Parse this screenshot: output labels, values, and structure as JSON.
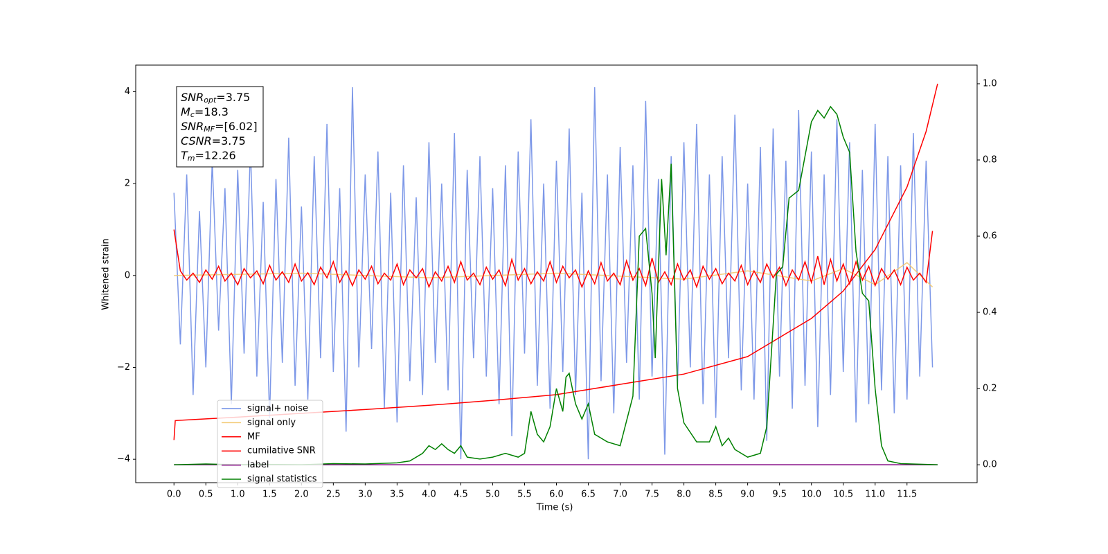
{
  "chart_data": {
    "type": "line",
    "xlabel": "Time (s)",
    "ylabel": "Whitened strain",
    "xlim": [
      -0.6,
      12.6
    ],
    "ylim": [
      -4.51,
      4.58
    ],
    "y2lim": [
      -0.047,
      1.049
    ],
    "xticks": [
      {
        "value": 0,
        "label": "0.0"
      },
      0.5,
      {
        "value": 1,
        "label": "1.0"
      },
      1.5,
      {
        "value": 2,
        "label": "2.0"
      },
      2.5,
      {
        "value": 3,
        "label": "3.0"
      },
      3.5,
      {
        "value": 4,
        "label": "4.0"
      },
      4.5,
      {
        "value": 5,
        "label": "5.0"
      },
      5.5,
      {
        "value": 6,
        "label": "6.0"
      },
      6.5,
      {
        "value": 7,
        "label": "7.0"
      },
      7.5,
      {
        "value": 8,
        "label": "8.0"
      },
      8.5,
      {
        "value": 9,
        "label": "9.0"
      },
      9.5,
      {
        "value": 10,
        "label": "10.0"
      },
      10.5,
      {
        "value": 11,
        "label": "11.0"
      },
      11.5
    ],
    "yticks": [
      {
        "value": -4,
        "label": "−4"
      },
      {
        "value": -2,
        "label": "−2"
      },
      0,
      2,
      4
    ],
    "y2ticks": [
      {
        "value": 0,
        "label": "0.0"
      },
      0.2,
      0.4,
      0.6,
      0.8,
      {
        "value": 1,
        "label": "1.0"
      }
    ],
    "legend": "lower left",
    "annotation": [
      {
        "text": "SNR",
        "sub": "opt",
        "value": "=3.75"
      },
      {
        "text": "M",
        "sub": "c",
        "value": "=18.3"
      },
      {
        "text": "SNR",
        "sub": "MF",
        "value": "=[6.02]"
      },
      {
        "text": "CSNR",
        "sub": "",
        "value": "=3.75"
      },
      {
        "text": "T",
        "sub": "m",
        "value": "=12.26"
      }
    ],
    "x": [
      0,
      0.1,
      0.2,
      0.3,
      0.4,
      0.5,
      0.6,
      0.7,
      0.8,
      0.9,
      1,
      1.1,
      1.2,
      1.3,
      1.4,
      1.5,
      1.6,
      1.7,
      1.8,
      1.9,
      2,
      2.1,
      2.2,
      2.3,
      2.4,
      2.5,
      2.6,
      2.7,
      2.8,
      2.9,
      3,
      3.1,
      3.2,
      3.3,
      3.4,
      3.5,
      3.6,
      3.7,
      3.8,
      3.9,
      4,
      4.1,
      4.2,
      4.3,
      4.4,
      4.5,
      4.6,
      4.7,
      4.8,
      4.9,
      5,
      5.1,
      5.2,
      5.3,
      5.4,
      5.5,
      5.6,
      5.7,
      5.8,
      5.9,
      6,
      6.1,
      6.2,
      6.3,
      6.4,
      6.5,
      6.6,
      6.7,
      6.8,
      6.9,
      7,
      7.1,
      7.2,
      7.3,
      7.4,
      7.5,
      7.6,
      7.7,
      7.8,
      7.9,
      8,
      8.1,
      8.2,
      8.3,
      8.4,
      8.5,
      8.6,
      8.7,
      8.8,
      8.9,
      9,
      9.1,
      9.2,
      9.3,
      9.4,
      9.5,
      9.6,
      9.7,
      9.8,
      9.9,
      10,
      10.1,
      10.2,
      10.3,
      10.4,
      10.5,
      10.6,
      10.7,
      10.8,
      10.9,
      11,
      11.1,
      11.2,
      11.3,
      11.4,
      11.5,
      11.6,
      11.7,
      11.8,
      11.9
    ],
    "series": [
      {
        "name": "signal+ noise",
        "color": "#6f8de6",
        "values": [
          1.8,
          -1.5,
          2.2,
          -2.6,
          1.4,
          -2.0,
          2.5,
          -1.2,
          1.9,
          -2.8,
          2.3,
          -1.7,
          2.8,
          -2.2,
          1.6,
          -3.1,
          2.1,
          -1.9,
          3.0,
          -2.4,
          1.5,
          -2.7,
          2.6,
          -1.8,
          3.3,
          -2.1,
          1.9,
          -3.4,
          4.1,
          -2.0,
          2.2,
          -1.6,
          2.7,
          -2.9,
          1.8,
          -3.2,
          2.4,
          -2.3,
          1.7,
          -2.6,
          2.9,
          -1.9,
          2.0,
          -2.5,
          3.1,
          -4.0,
          2.3,
          -1.8,
          2.6,
          -2.2,
          1.9,
          -2.8,
          2.4,
          -3.5,
          2.7,
          -1.7,
          3.4,
          -2.4,
          2.0,
          -2.9,
          2.5,
          -2.1,
          3.2,
          -2.6,
          1.8,
          -4.0,
          4.1,
          -2.3,
          2.2,
          -3.0,
          2.8,
          -1.9,
          2.4,
          -2.7,
          3.8,
          -2.2,
          2.1,
          -3.9,
          2.6,
          -2.4,
          2.9,
          -2.0,
          3.3,
          -2.8,
          2.2,
          -3.1,
          2.6,
          -1.8,
          3.5,
          -2.5,
          2.0,
          -2.7,
          2.8,
          -3.6,
          3.2,
          -2.2,
          2.5,
          -2.9,
          3.6,
          -2.4,
          2.7,
          -3.3,
          2.2,
          -2.6,
          3.4,
          -2.1,
          2.9,
          -3.2,
          2.3,
          -2.8,
          3.3,
          -2.5,
          2.6,
          -3.0,
          2.4,
          -2.7,
          3.1,
          -2.2,
          2.5,
          -2.0
        ]
      },
      {
        "name": "signal only",
        "color": "#f2c86f",
        "x": [
          0,
          2,
          4,
          6,
          8,
          9,
          10,
          10.5,
          11,
          11.5,
          11.9
        ],
        "values": [
          0,
          0.05,
          -0.05,
          0.05,
          -0.08,
          0.1,
          -0.12,
          0.15,
          -0.2,
          0.28,
          -0.25
        ]
      },
      {
        "name": "MF",
        "color": "#ff0000",
        "values": [
          1.0,
          0.1,
          -0.1,
          0.05,
          -0.15,
          0.12,
          -0.08,
          0.2,
          -0.12,
          0.05,
          -0.2,
          0.15,
          -0.05,
          0.1,
          -0.18,
          0.22,
          -0.1,
          0.08,
          -0.15,
          0.25,
          -0.12,
          0.06,
          -0.2,
          0.18,
          -0.05,
          0.3,
          -0.15,
          0.1,
          -0.22,
          0.12,
          -0.08,
          0.2,
          -0.18,
          0.05,
          -0.1,
          0.25,
          -0.2,
          0.12,
          -0.05,
          0.15,
          -0.25,
          0.08,
          -0.12,
          0.2,
          -0.15,
          0.3,
          -0.1,
          0.05,
          -0.2,
          0.18,
          -0.08,
          0.12,
          -0.22,
          0.35,
          -0.1,
          0.15,
          -0.18,
          0.08,
          -0.12,
          0.3,
          -0.15,
          0.2,
          -0.05,
          0.12,
          -0.25,
          0.1,
          -0.18,
          0.28,
          -0.12,
          0.05,
          -0.2,
          0.32,
          -0.1,
          0.15,
          -0.22,
          0.38,
          -0.15,
          0.08,
          -0.2,
          0.25,
          -0.1,
          0.12,
          -0.25,
          0.2,
          -0.08,
          0.15,
          -0.18,
          0.05,
          -0.12,
          0.22,
          -0.2,
          0.1,
          -0.15,
          0.25,
          -0.05,
          0.18,
          -0.22,
          0.12,
          -0.1,
          0.3,
          -0.15,
          0.42,
          -0.2,
          0.35,
          -0.12,
          0.25,
          -0.18,
          0.3,
          -0.1,
          0.2,
          -0.22,
          0.15,
          -0.08,
          0.12,
          -0.2,
          0.18,
          -0.1,
          0.05,
          -0.15,
          0.97
        ]
      },
      {
        "name": "cumilative SNR",
        "color": "#ff0000",
        "axis": "y2",
        "x": [
          0,
          0.02,
          1,
          2,
          3,
          4,
          5,
          6,
          7,
          8,
          9,
          10,
          10.5,
          11,
          11.5,
          11.8,
          11.98
        ],
        "values": [
          0.065,
          0.116,
          0.125,
          0.135,
          0.145,
          0.156,
          0.169,
          0.184,
          0.211,
          0.238,
          0.284,
          0.384,
          0.456,
          0.565,
          0.729,
          0.875,
          1.0
        ]
      },
      {
        "name": "label",
        "color": "#800080",
        "axis": "y2",
        "x": [
          0,
          11.98
        ],
        "values": [
          0,
          0
        ]
      },
      {
        "name": "signal statistics",
        "color": "#008000",
        "axis": "y2",
        "x": [
          0,
          0.5,
          1,
          1.5,
          2,
          2.5,
          3,
          3.5,
          3.7,
          3.9,
          4.0,
          4.1,
          4.2,
          4.3,
          4.4,
          4.5,
          4.6,
          4.8,
          5.0,
          5.2,
          5.4,
          5.5,
          5.6,
          5.7,
          5.8,
          5.9,
          6.0,
          6.1,
          6.15,
          6.2,
          6.3,
          6.4,
          6.5,
          6.6,
          6.8,
          7.0,
          7.2,
          7.3,
          7.4,
          7.5,
          7.55,
          7.65,
          7.72,
          7.8,
          7.9,
          8.0,
          8.2,
          8.4,
          8.5,
          8.6,
          8.7,
          8.8,
          8.9,
          9.0,
          9.2,
          9.3,
          9.45,
          9.55,
          9.65,
          9.8,
          10.0,
          10.1,
          10.2,
          10.3,
          10.4,
          10.5,
          10.6,
          10.7,
          10.8,
          10.9,
          11.0,
          11.1,
          11.2,
          11.4,
          11.98
        ],
        "values": [
          0,
          0.002,
          0,
          0.001,
          0,
          0.003,
          0.002,
          0.005,
          0.01,
          0.03,
          0.05,
          0.04,
          0.055,
          0.04,
          0.03,
          0.05,
          0.02,
          0.015,
          0.02,
          0.03,
          0.02,
          0.03,
          0.14,
          0.08,
          0.06,
          0.1,
          0.2,
          0.14,
          0.23,
          0.24,
          0.16,
          0.12,
          0.16,
          0.08,
          0.06,
          0.05,
          0.18,
          0.6,
          0.62,
          0.45,
          0.28,
          0.75,
          0.55,
          0.79,
          0.2,
          0.11,
          0.06,
          0.06,
          0.1,
          0.05,
          0.07,
          0.04,
          0.03,
          0.02,
          0.03,
          0.1,
          0.5,
          0.52,
          0.7,
          0.72,
          0.9,
          0.93,
          0.91,
          0.94,
          0.92,
          0.86,
          0.82,
          0.56,
          0.45,
          0.43,
          0.2,
          0.05,
          0.01,
          0.003,
          0
        ]
      }
    ]
  }
}
